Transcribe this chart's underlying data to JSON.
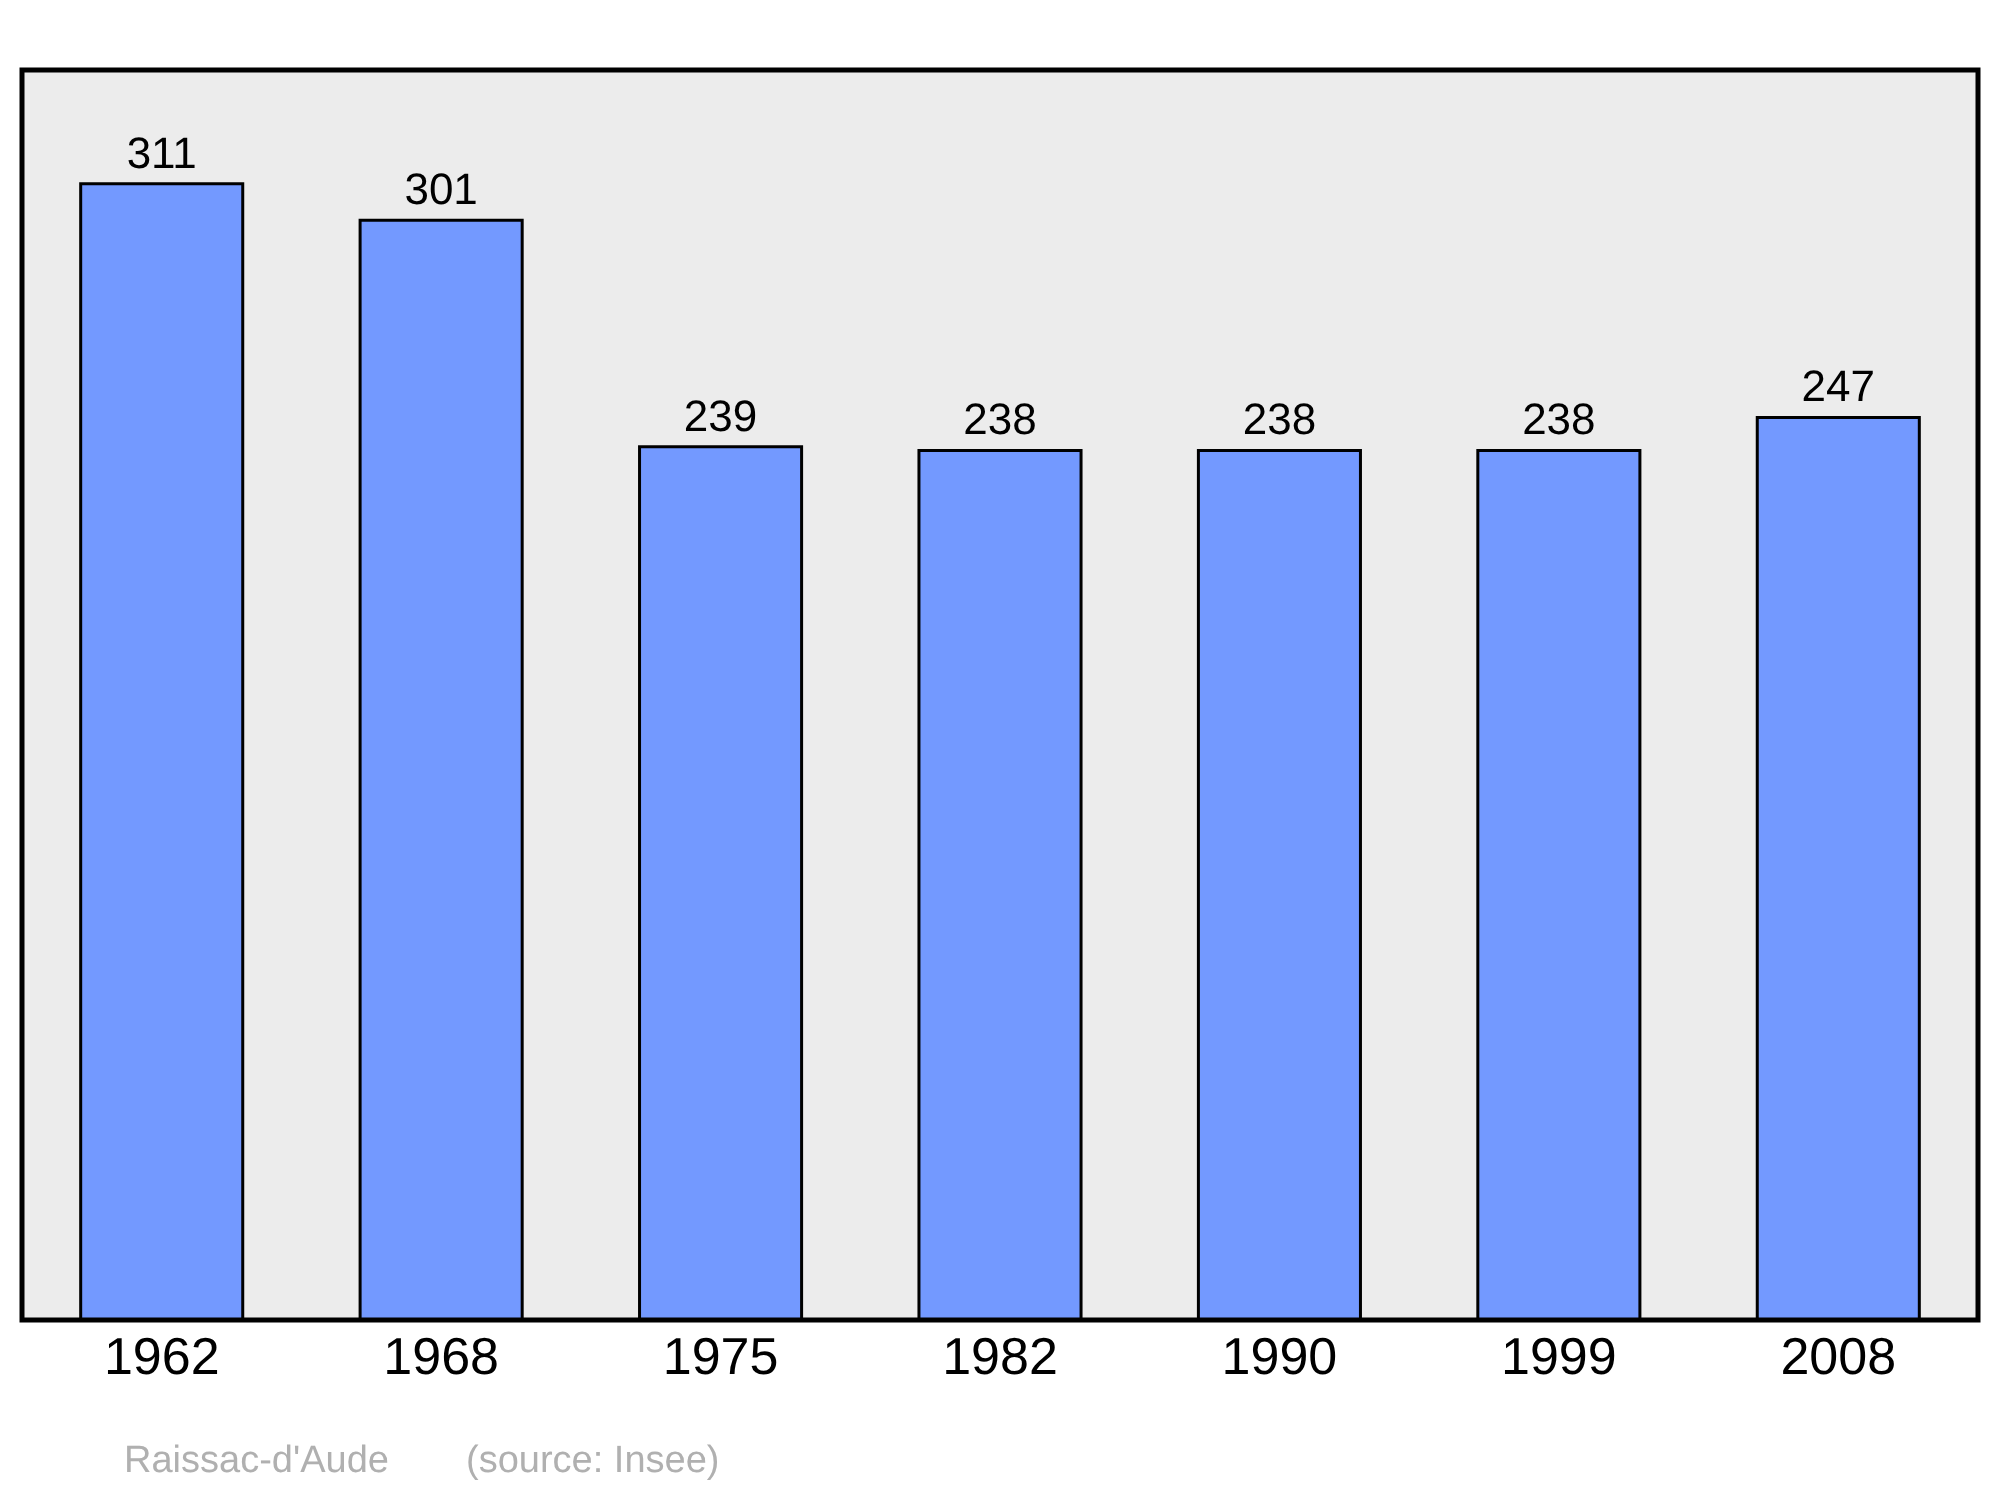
{
  "chart_data": {
    "type": "bar",
    "categories": [
      "1962",
      "1968",
      "1975",
      "1982",
      "1990",
      "1999",
      "2008"
    ],
    "values": [
      311,
      301,
      239,
      238,
      238,
      238,
      247
    ],
    "color": "#7399ff",
    "data_labels": true,
    "tick_labels": "x",
    "annotations": [
      "Raissac-d'Aude",
      "(source: Insee)"
    ]
  }
}
